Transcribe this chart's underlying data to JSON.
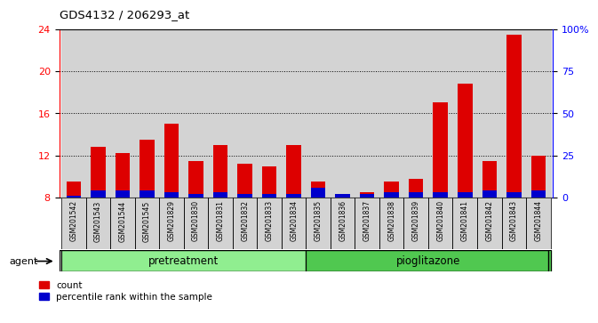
{
  "title": "GDS4132 / 206293_at",
  "samples": [
    "GSM201542",
    "GSM201543",
    "GSM201544",
    "GSM201545",
    "GSM201829",
    "GSM201830",
    "GSM201831",
    "GSM201832",
    "GSM201833",
    "GSM201834",
    "GSM201835",
    "GSM201836",
    "GSM201837",
    "GSM201838",
    "GSM201839",
    "GSM201840",
    "GSM201841",
    "GSM201842",
    "GSM201843",
    "GSM201844"
  ],
  "count_values": [
    9.5,
    12.8,
    12.2,
    13.5,
    15.0,
    11.5,
    13.0,
    11.2,
    11.0,
    13.0,
    9.5,
    8.0,
    8.5,
    9.5,
    9.8,
    17.0,
    18.8,
    11.5,
    23.5,
    12.0
  ],
  "percentile_right": [
    1,
    4,
    4,
    4,
    3,
    2,
    3,
    2,
    2,
    2,
    6,
    2,
    2,
    3,
    3,
    3,
    3,
    4,
    3,
    4
  ],
  "groups": [
    {
      "label": "pretreatment",
      "start": 0,
      "end": 10,
      "color": "#90ee90"
    },
    {
      "label": "pioglitazone",
      "start": 10,
      "end": 20,
      "color": "#50c850"
    }
  ],
  "ylim_left": [
    8,
    24
  ],
  "ylim_right": [
    0,
    100
  ],
  "yticks_left": [
    8,
    12,
    16,
    20,
    24
  ],
  "yticks_right": [
    0,
    25,
    50,
    75,
    100
  ],
  "ytick_labels_right": [
    "0",
    "25",
    "50",
    "75",
    "100%"
  ],
  "bar_color_red": "#dd0000",
  "bar_color_blue": "#0000cc",
  "bar_width": 0.6,
  "agent_label": "agent",
  "legend_count": "count",
  "legend_percentile": "percentile rank within the sample"
}
